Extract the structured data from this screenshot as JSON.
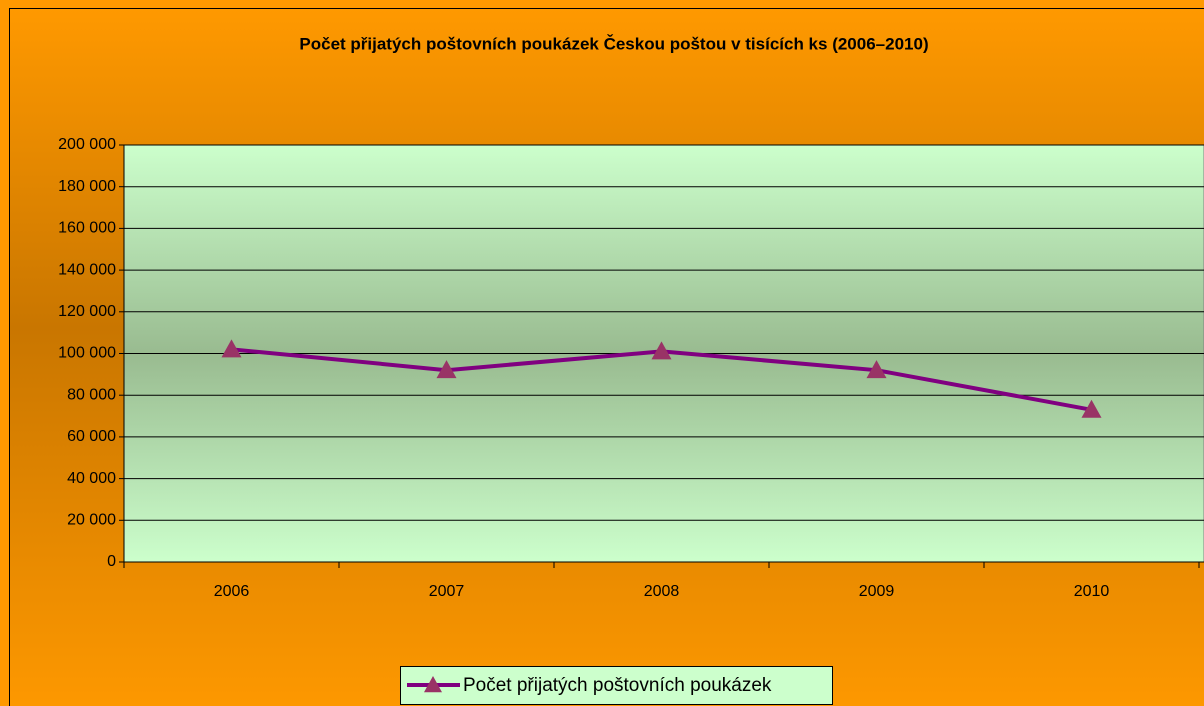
{
  "chart_data": {
    "type": "line",
    "title": "Počet přijatých poštovních poukázek Českou poštou v tisících ks (2006–2010)",
    "categories": [
      "2006",
      "2007",
      "2008",
      "2009",
      "2010"
    ],
    "series": [
      {
        "name": "Počet přijatých poštovních poukázek",
        "color": "#800080",
        "marker_color": "#993366",
        "values": [
          102000,
          92000,
          101000,
          92000,
          73000
        ]
      }
    ],
    "ylim": [
      0,
      200000
    ],
    "yticks": [
      0,
      {
        "value": 20000,
        "label": "20 000"
      },
      {
        "value": 40000,
        "label": "40 000"
      },
      {
        "value": 60000,
        "label": "60 000"
      },
      {
        "value": 80000,
        "label": "80 000"
      },
      {
        "value": 100000,
        "label": "100 000"
      },
      {
        "value": 120000,
        "label": "120 000"
      },
      {
        "value": 140000,
        "label": "140 000"
      },
      {
        "value": 160000,
        "label": "160 000"
      },
      {
        "value": 180000,
        "label": "180 000"
      },
      {
        "value": 200000,
        "label": "200 000"
      }
    ],
    "grid": true,
    "legend": "bottom"
  }
}
